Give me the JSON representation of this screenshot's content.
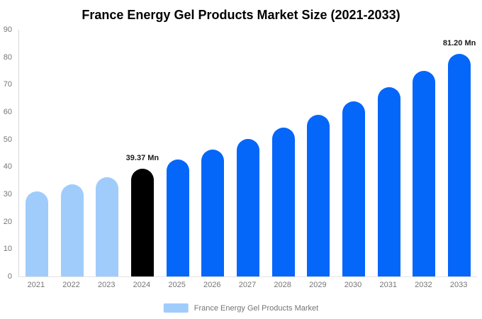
{
  "title": "France Energy Gel Products Market Size (2021-2033)",
  "legend": {
    "label": "France Energy Gel Products Market",
    "swatch_color": "#A0CCFC"
  },
  "colors": {
    "light_blue": "#A0CCFC",
    "highlight_black": "#000000",
    "primary_blue": "#0566FA",
    "axis_line": "#D8D8D8",
    "baseline": "#E3E3E3",
    "tick_text": "#757575",
    "data_label_text": "#1A1A1A",
    "background": "#FFFFFF"
  },
  "chart_data": {
    "type": "bar",
    "title": "France Energy Gel Products Market Size (2021-2033)",
    "categories": [
      "2021",
      "2022",
      "2023",
      "2024",
      "2025",
      "2026",
      "2027",
      "2028",
      "2029",
      "2030",
      "2031",
      "2032",
      "2033"
    ],
    "values": [
      30.93,
      33.52,
      36.33,
      39.37,
      42.67,
      46.24,
      50.11,
      54.3,
      58.85,
      63.77,
      69.11,
      74.89,
      81.2
    ],
    "unit": "Mn",
    "data_labels": [
      "",
      "",
      "",
      "39.37 Mn",
      "",
      "",
      "",
      "",
      "",
      "",
      "",
      "",
      "81.20 Mn"
    ],
    "bar_color_roles": [
      "light",
      "light",
      "light",
      "highlight",
      "primary",
      "primary",
      "primary",
      "primary",
      "primary",
      "primary",
      "primary",
      "primary",
      "primary"
    ],
    "xlabel": "",
    "ylabel": "",
    "ylim": [
      0,
      90
    ],
    "y_ticks": [
      0,
      10,
      20,
      30,
      40,
      50,
      60,
      70,
      80,
      90
    ],
    "grid": false,
    "legend_position": "bottom",
    "series_name": "France Energy Gel Products Market"
  }
}
